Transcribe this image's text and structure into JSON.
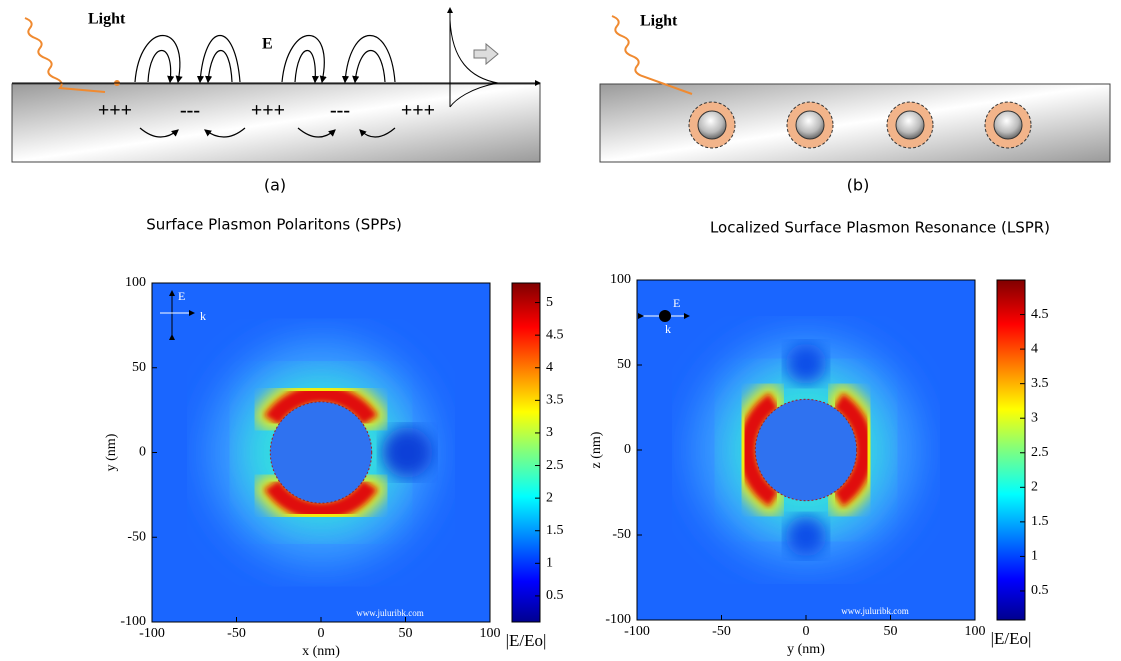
{
  "panel_a": {
    "light": "Light",
    "field": "E",
    "charges": [
      "+++",
      "---",
      "+++",
      "---",
      "+++"
    ],
    "label": "(a)",
    "caption": "Surface Plasmon Polaritons (SPPs)"
  },
  "panel_b": {
    "light": "Light",
    "label": "(b)",
    "caption": "Localized Surface Plasmon Resonance (LSPR)"
  },
  "maps": [
    {
      "xlabel": "x (nm)",
      "ylabel": "y (nm)",
      "xlim": [
        -100,
        100
      ],
      "ylim": [
        -100,
        100
      ],
      "xticks": [
        -100,
        -50,
        0,
        50,
        100
      ],
      "yticks": [
        -100,
        -50,
        0,
        50,
        100
      ],
      "field_label": "E",
      "wave_label": "k",
      "watermark": "www.juluribk.com",
      "colorbar": {
        "lim": [
          0.1,
          5.3
        ],
        "ticks": [
          0.5,
          1,
          1.5,
          2,
          2.5,
          3,
          3.5,
          4,
          4.5,
          5
        ],
        "label": "|E/Eo|"
      }
    },
    {
      "xlabel": "y (nm)",
      "ylabel": "z (nm)",
      "xlim": [
        -100,
        100
      ],
      "ylim": [
        -100,
        100
      ],
      "xticks": [
        -100,
        -50,
        0,
        50,
        100
      ],
      "yticks": [
        -100,
        -50,
        0,
        50,
        100
      ],
      "field_label": "E",
      "wave_label": "k",
      "watermark": "www.juluribk.com",
      "colorbar": {
        "lim": [
          0.08,
          5.0
        ],
        "ticks": [
          0.5,
          1,
          1.5,
          2,
          2.5,
          3,
          3.5,
          4,
          4.5
        ],
        "label": "|E/Eo|"
      }
    }
  ]
}
